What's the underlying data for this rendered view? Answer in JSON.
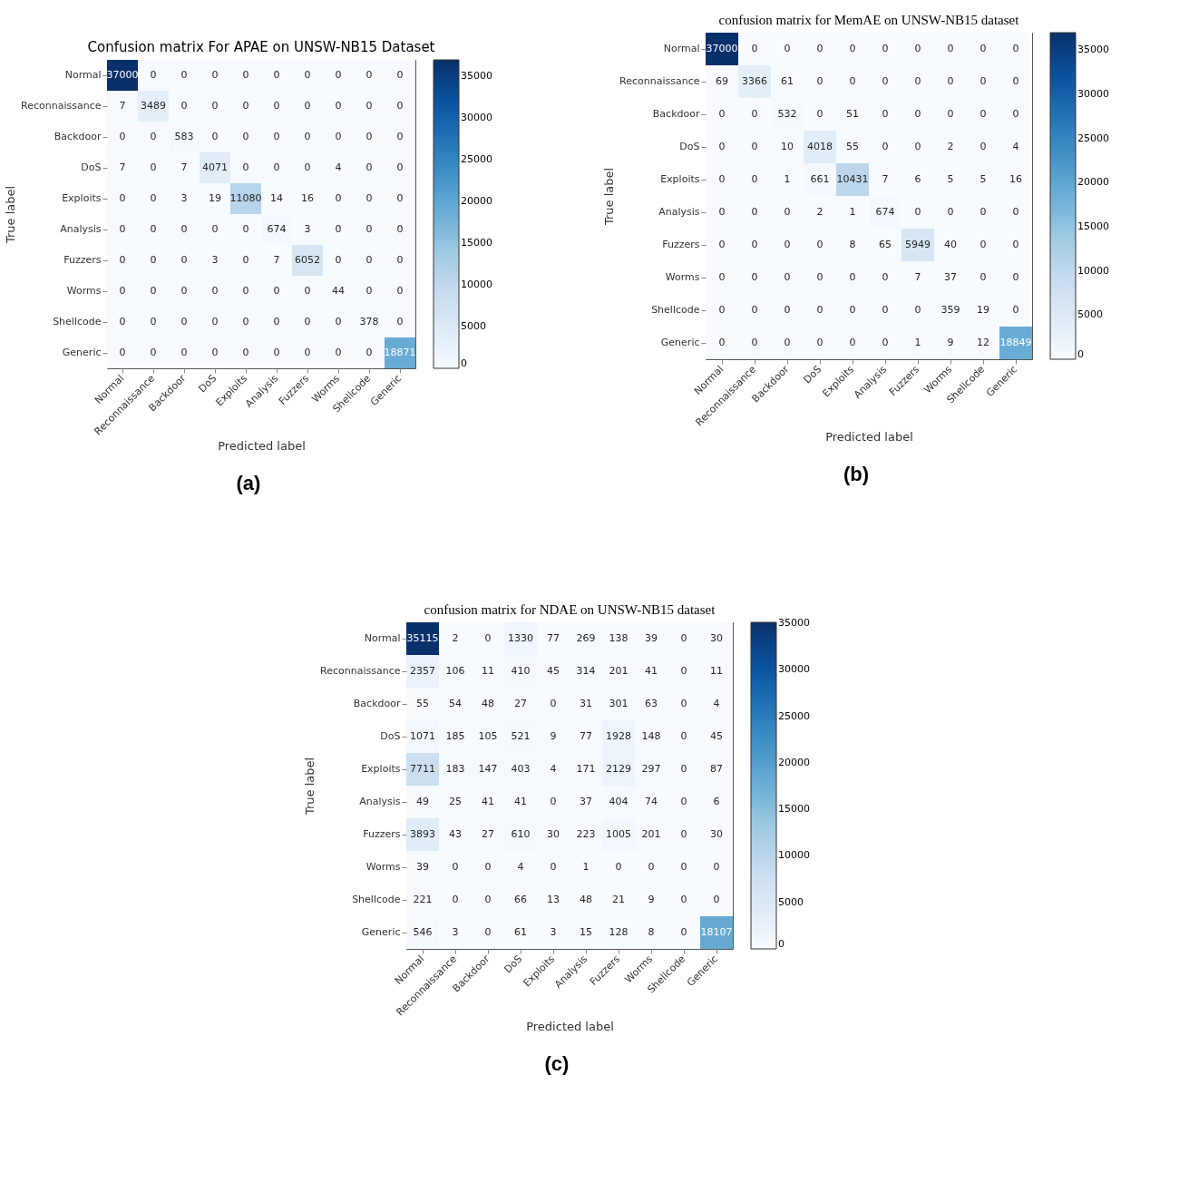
{
  "chart_data": [
    {
      "type": "heatmap",
      "title": "Confusion matrix For APAE on UNSW-NB15 Dataset",
      "xlabel": "Predicted label",
      "ylabel": "True label",
      "annotations": [
        "(a)"
      ],
      "categories": [
        "Normal",
        "Reconnaissance",
        "Backdoor",
        "DoS",
        "Exploits",
        "Analysis",
        "Fuzzers",
        "Worms",
        "Shellcode",
        "Generic"
      ],
      "y_categories": [
        "Normal",
        "Reconnaissance",
        "Backdoor",
        "DoS",
        "Exploits",
        "Analysis",
        "Fuzzers",
        "Worms",
        "Shellcode",
        "Generic"
      ],
      "cells": [
        [
          37000,
          0,
          0,
          0,
          0,
          0,
          0,
          0,
          0,
          0
        ],
        [
          7,
          3489,
          0,
          0,
          0,
          0,
          0,
          0,
          0,
          0
        ],
        [
          0,
          0,
          583,
          0,
          0,
          0,
          0,
          0,
          0,
          0
        ],
        [
          7,
          0,
          7,
          4071,
          0,
          0,
          0,
          4,
          0,
          0
        ],
        [
          0,
          0,
          3,
          19,
          11080,
          14,
          16,
          0,
          0,
          0
        ],
        [
          0,
          0,
          0,
          0,
          0,
          674,
          3,
          0,
          0,
          0
        ],
        [
          0,
          0,
          0,
          3,
          0,
          7,
          6052,
          0,
          0,
          0
        ],
        [
          0,
          0,
          0,
          0,
          0,
          0,
          0,
          44,
          0,
          0
        ],
        [
          0,
          0,
          0,
          0,
          0,
          0,
          0,
          0,
          378,
          0
        ],
        [
          0,
          0,
          0,
          0,
          0,
          0,
          0,
          0,
          0,
          18871
        ]
      ],
      "clim": [
        0,
        37000
      ],
      "cticks": [
        0,
        5000,
        10000,
        15000,
        20000,
        25000,
        30000,
        35000
      ],
      "data_labels": true
    },
    {
      "type": "heatmap",
      "title": "confusion matrix for MemAE on UNSW-NB15 dataset",
      "xlabel": "Predicted label",
      "ylabel": "True label",
      "annotations": [
        "(b)"
      ],
      "categories": [
        "Normal",
        "Reconnaissance",
        "Backdoor",
        "DoS",
        "Exploits",
        "Analysis",
        "Fuzzers",
        "Worms",
        "Shellcode",
        "Generic"
      ],
      "y_categories": [
        "Normal",
        "Reconnaissance",
        "Backdoor",
        "DoS",
        "Exploits",
        "Analysis",
        "Fuzzers",
        "Worms",
        "Shellcode",
        "Generic"
      ],
      "cells": [
        [
          37000,
          0,
          0,
          0,
          0,
          0,
          0,
          0,
          0,
          0
        ],
        [
          69,
          3366,
          61,
          0,
          0,
          0,
          0,
          0,
          0,
          0
        ],
        [
          0,
          0,
          532,
          0,
          51,
          0,
          0,
          0,
          0,
          0
        ],
        [
          0,
          0,
          10,
          4018,
          55,
          0,
          0,
          2,
          0,
          4
        ],
        [
          0,
          0,
          1,
          661,
          10431,
          7,
          6,
          5,
          5,
          16
        ],
        [
          0,
          0,
          0,
          2,
          1,
          674,
          0,
          0,
          0,
          0
        ],
        [
          0,
          0,
          0,
          0,
          8,
          65,
          5949,
          40,
          0,
          0
        ],
        [
          0,
          0,
          0,
          0,
          0,
          0,
          7,
          37,
          0,
          0
        ],
        [
          0,
          0,
          0,
          0,
          0,
          0,
          0,
          359,
          19,
          0
        ],
        [
          0,
          0,
          0,
          0,
          0,
          0,
          1,
          9,
          12,
          18849
        ]
      ],
      "clim": [
        0,
        37000
      ],
      "cticks": [
        0,
        5000,
        10000,
        15000,
        20000,
        25000,
        30000,
        35000
      ],
      "data_labels": true
    },
    {
      "type": "heatmap",
      "title": "confusion matrix for NDAE on UNSW-NB15 dataset",
      "xlabel": "Predicted label",
      "ylabel": "True label",
      "annotations": [
        "(c)"
      ],
      "categories": [
        "Normal",
        "Reconnaissance",
        "Backdoor",
        "DoS",
        "Exploits",
        "Analysis",
        "Fuzzers",
        "Worms",
        "Shellcode",
        "Generic"
      ],
      "y_categories": [
        "Normal",
        "Reconnaissance",
        "Backdoor",
        "DoS",
        "Exploits",
        "Analysis",
        "Fuzzers",
        "Worms",
        "Shellcode",
        "Generic"
      ],
      "cells": [
        [
          35115,
          2,
          0,
          1330,
          77,
          269,
          138,
          39,
          0,
          30
        ],
        [
          2357,
          106,
          11,
          410,
          45,
          314,
          201,
          41,
          0,
          11
        ],
        [
          55,
          54,
          48,
          27,
          0,
          31,
          301,
          63,
          0,
          4
        ],
        [
          1071,
          185,
          105,
          521,
          9,
          77,
          1928,
          148,
          0,
          45
        ],
        [
          7711,
          183,
          147,
          403,
          4,
          171,
          2129,
          297,
          0,
          87
        ],
        [
          49,
          25,
          41,
          41,
          0,
          37,
          404,
          74,
          0,
          6
        ],
        [
          3893,
          43,
          27,
          610,
          30,
          223,
          1005,
          201,
          0,
          30
        ],
        [
          39,
          0,
          0,
          4,
          0,
          1,
          0,
          0,
          0,
          0
        ],
        [
          221,
          0,
          0,
          66,
          13,
          48,
          21,
          9,
          0,
          0
        ],
        [
          546,
          3,
          0,
          61,
          3,
          15,
          128,
          8,
          0,
          18107
        ]
      ],
      "clim": [
        0,
        35115
      ],
      "cticks": [
        0,
        5000,
        10000,
        15000,
        20000,
        25000,
        30000,
        35000
      ],
      "data_labels": true
    }
  ]
}
